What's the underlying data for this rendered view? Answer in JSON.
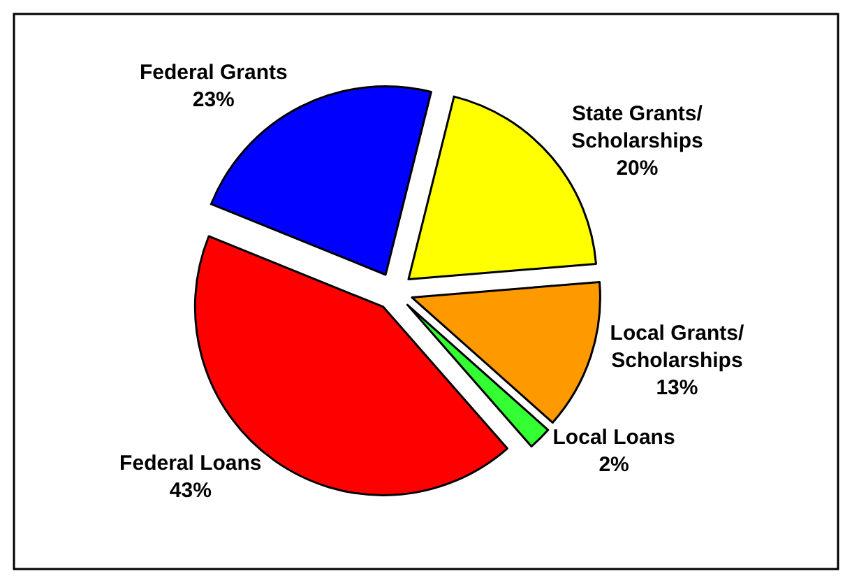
{
  "chart_data": {
    "type": "pie",
    "categories": [
      "State Grants/\nScholarships",
      "Local Grants/\nScholarships",
      "Local Loans",
      "Federal Loans",
      "Federal Grants"
    ],
    "values": [
      20,
      13,
      2,
      43,
      23
    ],
    "value_labels": [
      "20%",
      "13%",
      "2%",
      "43%",
      "23%"
    ],
    "colors": [
      "#ffff00",
      "#ff9900",
      "#33ff33",
      "#ff0000",
      "#0000ff"
    ]
  }
}
